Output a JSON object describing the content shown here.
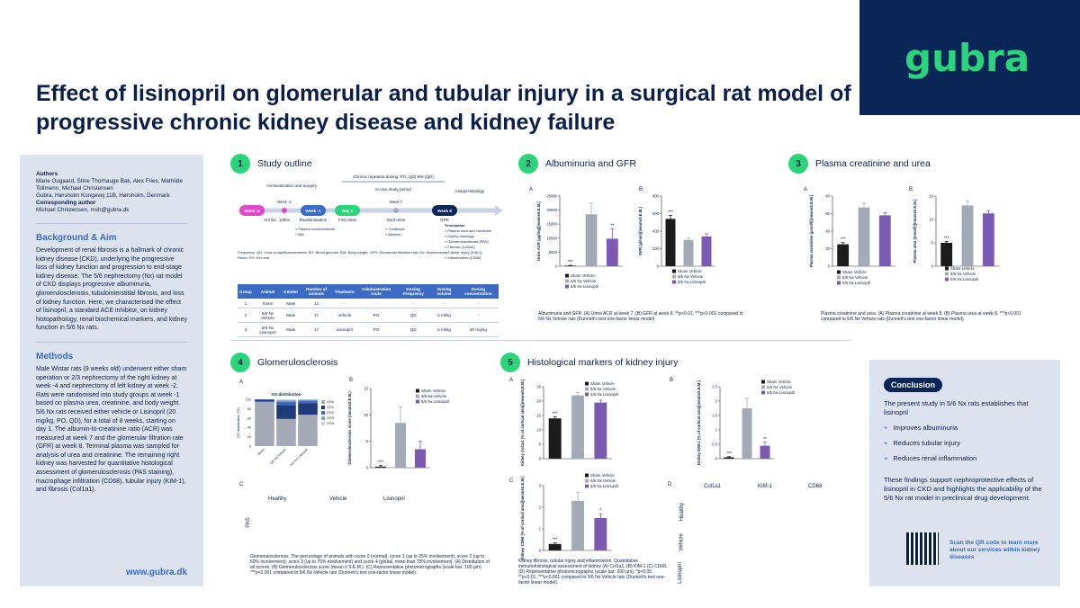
{
  "brand": {
    "logo": "gubra",
    "accent": "#2bd47a",
    "navy": "#0a2659",
    "blue": "#3b6bc4"
  },
  "title": "Effect of lisinopril on glomerular and tubular injury in a surgical rat model of progressive chronic kidney disease and kidney failure",
  "sidebar": {
    "authors_heading": "Authors",
    "authors": "Marie Ougaard, Stine Thorhauge Bak, Alex Fries, Mathilde Tollmenn, Michael Christensen",
    "affiliation": "Gubra, Hørsholm Kongevej 11B, Hørsholm, Denmark",
    "corresponding_heading": "Corresponding author",
    "corresponding": "Michael Christensen, msh@gubra.dk",
    "background_heading": "Background & Aim",
    "background": "Development of renal fibrosis is a hallmark of chronic kidney disease (CKD), underlying the progressive loss of kidney function and progression to end-stage kidney disease. The 5/6 nephrectomy (Nx) rat model of CKD displays progressive albuminuria, glomerulosclerosis, tubulointerstitial fibrosis, and loss of kidney function. Here, we characterised the effect of lisinopril, a standard ACE inhibitor, on kidney histopathology, renal biochemical markers, and kidney function in 5/6 Nx rats.",
    "methods_heading": "Methods",
    "methods": "Male Wistar rats (9 weeks old) underwent either sham operation or 2/3 nephrectomy of the right kidney at week -4 and nephrectomy of left kidney at week -2. Rats were randomised into study groups at week -1 based on plasma urea, creatinine, and body weight. 5/6 Nx rats received either vehicle or Lisinopril (20 mg/kg, PO, QD), for a total of 8 weeks, starting on day 1. The albumin-to-creatinine ratio (ACR) was measured at week 7 and the glomerular filtration rate (GFR) at week 8. Terminal plasma was sampled for analysis of urea and creatinine. The remaining right kidney was harvested for quantitative histological assessment of glomerulosclerosis (PAS staining), macrophage infiltration (CD68), tubular injury (KIM-1), and fibrosis (Col1a1).",
    "website": "www.gubra.dk"
  },
  "sections": {
    "s1": {
      "num": "1",
      "title": "Study outline"
    },
    "s2": {
      "num": "2",
      "title": "Albuminuria and GFR"
    },
    "s3": {
      "num": "3",
      "title": "Plasma creatinine and urea"
    },
    "s4": {
      "num": "4",
      "title": "Glomerulosclerosis"
    },
    "s5": {
      "num": "5",
      "title": "Histological markers of kidney injury"
    }
  },
  "outline": {
    "dosing_label": "Chronic repeated dosing: PO, QD) 8W (QD)",
    "acclimatization": "Acclimatization and surgery",
    "invivo": "In vivo study period",
    "assay": "Assay/Histology",
    "weeks": [
      "Week -4",
      "Week -2",
      "Week -1",
      "Day 1",
      "Week 7",
      "Week 8"
    ],
    "week_subs": [
      "2/3 Nx",
      "1/3Nx",
      "Randomisation",
      "First dose",
      "Spot urine",
      "GFR"
    ],
    "termination": "Termination",
    "termination_items": [
      "Plasma urea and creatinine",
      "Kidney histology:",
      "Glomerulosclerosis (PAS)",
      "Fibrosis (Col1a1)",
      "Tubular injury (KIM-1)",
      "Inflammation (CD68)"
    ],
    "rand_items": [
      "Plasma urea/creatinine",
      "BW"
    ],
    "spot_items": [
      "Creatinine",
      "Albumin"
    ],
    "frequency": "Frequency: QD: Once a day",
    "route": "Route: PO: Per oral",
    "measurements": "Measurements: BG: Blood glucose; BW: Body weight; GFR: Glomerular filtration rate; Nx: Nephrectomy"
  },
  "study_table": {
    "headers": [
      "Group",
      "Animal",
      "Gender",
      "Number of animals",
      "Treatment",
      "Administration route",
      "Dosing Frequency",
      "Dosing volume",
      "Dosing concentration"
    ],
    "rows": [
      [
        "1",
        "Sham",
        "Male",
        "12",
        "-",
        "-",
        "-",
        "-",
        "-"
      ],
      [
        "2",
        "5/6 Nx Vehicle",
        "Male",
        "17",
        "Vehicle",
        "PO",
        "QD",
        "5 ml/kg",
        "-"
      ],
      [
        "3",
        "5/6 Nx Lisinopril",
        "Male",
        "17",
        "Lisinopril",
        "PO",
        "QD",
        "5 ml/kg",
        "20 mg/kg"
      ]
    ]
  },
  "legend": [
    "Sham Vehicle",
    "5/6 Nx Vehicle",
    "5/6 Nx Lisinopril"
  ],
  "legend_colors": [
    "#1c1c1c",
    "#a3aab5",
    "#7b5bb2"
  ],
  "chart_data": [
    {
      "id": "A2",
      "type": "bar",
      "categories": [
        "Sham Vehicle",
        "5/6 Nx Vehicle",
        "5/6 Nx Lisinopril"
      ],
      "values": [
        200,
        18500,
        9800
      ],
      "errors": [
        100,
        4000,
        3500
      ],
      "sig": [
        "***",
        "",
        "**"
      ],
      "ylabel": "Urine ACR (µg/mg)[mean±S.E.M.]",
      "ylim": [
        0,
        25000
      ],
      "ticks": [
        0,
        5000,
        10000,
        15000,
        20000,
        25000
      ]
    },
    {
      "id": "B2",
      "type": "bar",
      "categories": [
        "Sham Vehicle",
        "5/6 Nx Vehicle",
        "5/6 Nx Lisinopril"
      ],
      "values": [
        540,
        300,
        340
      ],
      "errors": [
        40,
        25,
        30
      ],
      "sig": [
        "***",
        "",
        ""
      ],
      "ylabel": "GFR (µl/min)[mean±S.E.M.]",
      "ylim": [
        0,
        800
      ],
      "ticks": [
        0,
        200,
        400,
        600,
        800
      ]
    },
    {
      "id": "A3",
      "type": "bar",
      "categories": [
        "Sham Vehicle",
        "5/6 Nx Vehicle",
        "5/6 Nx Lisinopril"
      ],
      "values": [
        25,
        67,
        58
      ],
      "errors": [
        2,
        5,
        3
      ],
      "sig": [
        "***",
        "",
        ""
      ],
      "ylabel": "Plasma creatinine (µmol/l)[mean±S.E.M.]",
      "ylim": [
        0,
        80
      ],
      "ticks": [
        0,
        20,
        40,
        60,
        80
      ]
    },
    {
      "id": "B3",
      "type": "bar",
      "categories": [
        "Sham Vehicle",
        "5/6 Nx Vehicle",
        "5/6 Nx Lisinopril"
      ],
      "values": [
        5,
        13,
        11.3
      ],
      "errors": [
        0.3,
        1,
        0.6
      ],
      "sig": [
        "***",
        "",
        ""
      ],
      "ylabel": "Plasma urea (mmol/l)[mean±S.E.M.]",
      "ylim": [
        0,
        15
      ],
      "ticks": [
        0,
        5,
        10,
        15
      ]
    },
    {
      "id": "B4",
      "type": "bar",
      "categories": [
        "Sham Vehicle",
        "5/6 Nx Vehicle",
        "5/6 Nx Lisinopril"
      ],
      "values": [
        0.2,
        8.5,
        3.5
      ],
      "errors": [
        0.2,
        3,
        1.5
      ],
      "sig": [
        "***",
        "",
        ""
      ],
      "ylabel": "Glomerulosclerosis score (mean±S.E.M.)",
      "ylim": [
        0,
        15
      ],
      "ticks": [
        0,
        5,
        10,
        15
      ]
    },
    {
      "id": "A5",
      "type": "bar",
      "categories": [
        "Sham Vehicle",
        "5/6 Nx Vehicle",
        "5/6 Nx Lisinopril"
      ],
      "values": [
        14,
        22,
        19.5
      ],
      "errors": [
        0.6,
        1,
        0.8
      ],
      "sig": [
        "***",
        "",
        ""
      ],
      "ylabel": "Kidney Col1a1 (% of cortical area)[mean±S.E.M.]",
      "ylim": [
        0,
        25
      ],
      "ticks": [
        0,
        5,
        10,
        15,
        20,
        25
      ]
    },
    {
      "id": "B5",
      "type": "bar",
      "categories": [
        "Sham Vehicle",
        "5/6 Nx Vehicle",
        "5/6 Nx Lisinopril"
      ],
      "values": [
        0.05,
        1.75,
        0.45
      ],
      "errors": [
        0.02,
        0.35,
        0.12
      ],
      "sig": [
        "***",
        "",
        "**"
      ],
      "ylabel": "Kidney KIM-1 (% of cortical area)[mean±S.E.M.]",
      "ylim": [
        0,
        2.5
      ],
      "ticks": [
        0,
        0.5,
        1.0,
        1.5,
        2.0,
        2.5
      ]
    },
    {
      "id": "C5",
      "type": "bar",
      "categories": [
        "Sham Vehicle",
        "5/6 Nx Vehicle",
        "5/6 Nx Lisinopril"
      ],
      "values": [
        0.3,
        2.3,
        1.5
      ],
      "errors": [
        0.05,
        0.4,
        0.2
      ],
      "sig": [
        "***",
        "",
        "*"
      ],
      "ylabel": "Kidney CD68 (% of cortical area)[mean±S.E.M.]",
      "ylim": [
        0,
        3
      ],
      "ticks": [
        0,
        1,
        2,
        3
      ]
    },
    {
      "id": "A4",
      "type": "bar",
      "stacked": true,
      "title": "GS distribution",
      "categories": [
        "Sham",
        "5/6 Nx Vehicle",
        "5/6 Nx Lisinopril"
      ],
      "series": [
        {
          "name": "GS0",
          "values": [
            95,
            58,
            67
          ]
        },
        {
          "name": "GS1",
          "values": [
            4,
            30,
            25
          ]
        },
        {
          "name": "GS2",
          "values": [
            1,
            7,
            5
          ]
        },
        {
          "name": "GS3",
          "values": [
            0,
            3,
            2
          ]
        },
        {
          "name": "GS4",
          "values": [
            0,
            2,
            1
          ]
        }
      ],
      "ylabel": "GS distribution (%)",
      "ylim": [
        0,
        100
      ],
      "ticks": [
        0,
        20,
        40,
        60,
        80,
        100
      ]
    }
  ],
  "captions": {
    "s2": "Albuminuria and GFR. (A) Urine ACR at week 7. (B) GFR at week 8. **p<0.01, ***p<0.001 compared to 5/6 Nx Vehicle rats (Dunnett's test one-factor linear model).",
    "s3": "Plasma creatinine and urea. (A) Plasma creatinine at week 8. (B) Plasma urea at week 8. ***p<0.001 compared to 5/6 Nx Vehicle rats (Dunnett's test one-factor linear model).",
    "s4": "Glomerulosclerosis. The percentage of animals with score 0 (normal), score 1 (up to 25% involvement), score 2 (up to 50% involvement), score 3 (up to 75% involvement) and score 4 (global, more than 75% involvement). (A) Distribution of all scores. (B) Glomerulosclerosis score (mean ± S.E.M.). (C) Representative photomicrographs (scale bar: 100 µm). ***p<0.001 compared to 5/6 Nx Vehicle rats (Dunnett's test one-factor linear model).",
    "s5": "Kidney fibrosis, tubular injury and inflammation. Quantitative immunohistological assessment of kidney (A) Col1a1, (B) KIM-1 (C) CD68. (D) Representative photomicrographs (scale bar: 200 µm). *p<0.05 **p<0.01, ***p<0.001 compared to 5/6 Nx Vehicle rats (Dunnett's test one-factor linear model)."
  },
  "s4_photo_labels": {
    "panel": "C",
    "cols": [
      "Healthy",
      "Vehicle",
      "Lisinopril"
    ],
    "row": "PAS"
  },
  "s5_photo_labels": {
    "panel": "D",
    "cols": [
      "Col1a1",
      "KIM-1",
      "CD68"
    ],
    "rows": [
      "Healthy",
      "Vehicle",
      "Lisinopril"
    ]
  },
  "conclusion": {
    "badge": "Conclusion",
    "intro": "The present study in 5/6 Nx rats establishes that lisinopril",
    "items": [
      "Improves albuminuria",
      "Reduces tubular injury",
      "Reduces renal inflammation"
    ],
    "outro": "These findings support nephroprotective effects of lisinopril in CKD and highlights the applicability of the 5/6 Nx rat model in preclinical drug development.",
    "qr_text": "Scan the QR code to learn more about our services within kidney diseases"
  }
}
